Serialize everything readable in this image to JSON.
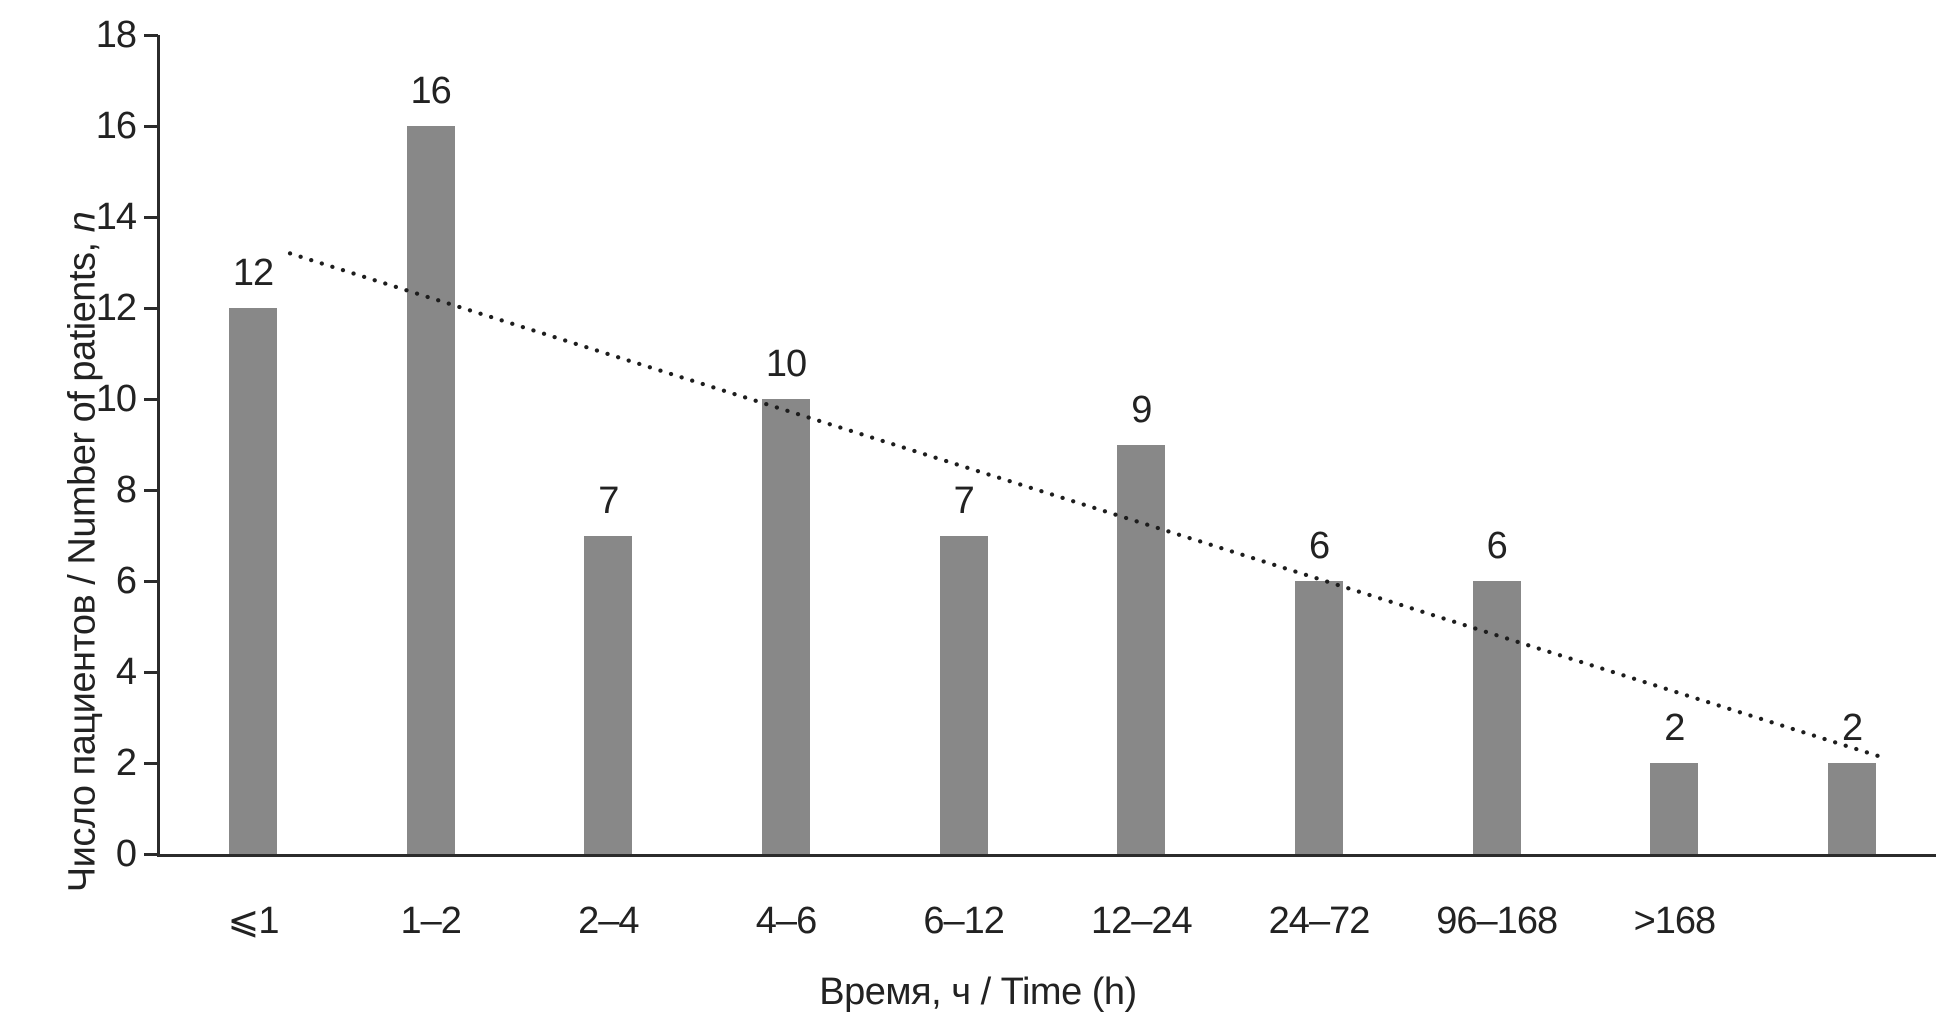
{
  "chart_data": {
    "type": "bar",
    "title": "",
    "categories": [
      "⩽1",
      "1–2",
      "2–4",
      "4–6",
      "6–12",
      "12–24",
      "24–72",
      "96–168",
      ">168",
      ""
    ],
    "values": [
      12,
      16,
      7,
      10,
      7,
      9,
      6,
      6,
      2,
      2
    ],
    "bar_value_labels": [
      "12",
      "16",
      "7",
      "10",
      "7",
      "9",
      "6",
      "6",
      "2",
      "2"
    ],
    "xlabel": "Время, ч / Time (h)",
    "ylabel_main": "Число пациентов / Number of patients, ",
    "ylabel_suffix_italic": "n",
    "ylim": [
      0,
      18
    ],
    "yticks": [
      0,
      2,
      4,
      6,
      8,
      10,
      12,
      14,
      16,
      18
    ],
    "grid": false,
    "legend": false,
    "bar_color": "#888888",
    "axis_color": "#2b2b2b",
    "text_color": "#222222",
    "trendline": {
      "style": "dotted",
      "color": "#1d1d1d",
      "start_value": 13.2,
      "end_value": 2.1
    }
  }
}
